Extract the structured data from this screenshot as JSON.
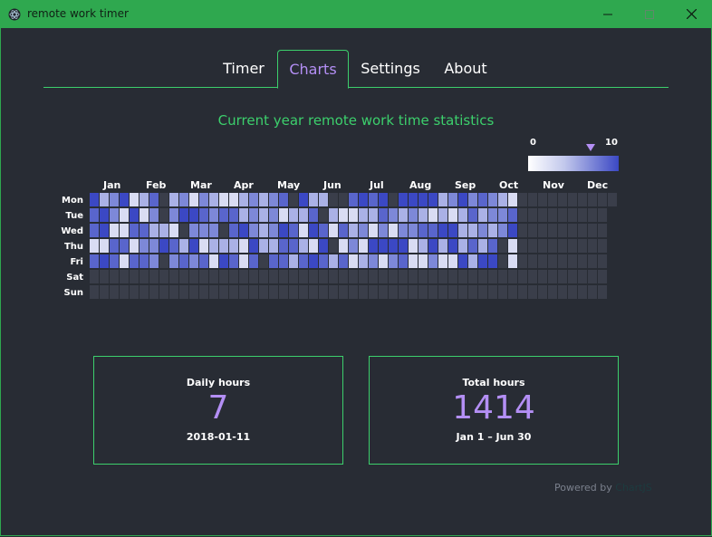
{
  "window": {
    "title": "remote work timer"
  },
  "tabs": [
    {
      "label": "Timer",
      "active": false
    },
    {
      "label": "Charts",
      "active": true
    },
    {
      "label": "Settings",
      "active": false
    },
    {
      "label": "About",
      "active": false
    }
  ],
  "heading": "Current year remote work time statistics",
  "scale": {
    "min": "0",
    "max": "10",
    "marker_value": 7
  },
  "months": [
    "Jan",
    "Feb",
    "Mar",
    "Apr",
    "May",
    "Jun",
    "Jul",
    "Aug",
    "Sep",
    "Oct",
    "Nov",
    "Dec"
  ],
  "days": [
    "Mon",
    "Tue",
    "Wed",
    "Thu",
    "Fri",
    "Sat",
    "Sun"
  ],
  "colors": {
    "accent": "#3ccf6c",
    "highlight": "#b48ff5",
    "background": "#282c34",
    "empty_cell": "#3a3e4a",
    "scale_low": "#ffffff",
    "scale_high": "#3b48c4"
  },
  "daily": {
    "label": "Daily hours",
    "value": "7",
    "date": "2018-01-11"
  },
  "total": {
    "label": "Total hours",
    "value": "1414",
    "range": "Jan 1 – Jun 30"
  },
  "footer": {
    "powered_by": "Powered by",
    "link": "ChartJS"
  }
}
